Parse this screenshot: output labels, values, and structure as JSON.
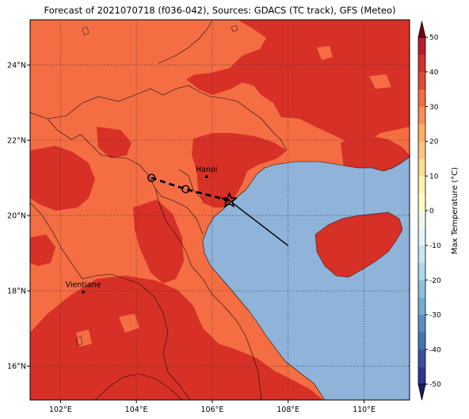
{
  "title": "Forecast of 2021070718 (f036-042), Sources: GDACS (TC track), GFS (Meteo)",
  "map": {
    "lon_range": [
      101.2,
      111.2
    ],
    "lat_range": [
      15.1,
      25.2
    ],
    "lon_ticks": [
      102,
      104,
      106,
      108,
      110
    ],
    "lat_ticks": [
      16,
      18,
      20,
      22,
      24
    ],
    "lon_tick_labels": [
      "102°E",
      "104°E",
      "106°E",
      "108°E",
      "110°E"
    ],
    "lat_tick_labels": [
      "16°N",
      "18°N",
      "20°N",
      "22°N",
      "24°N"
    ],
    "gridlines": true,
    "ocean_color": "#8fb3d9",
    "land_colors": {
      "20_30": "#f46d43",
      "30_40": "#d73027"
    }
  },
  "cities": [
    {
      "name": "Hanoi",
      "lon": 105.85,
      "lat": 21.03
    },
    {
      "name": "Vientiane",
      "lon": 102.6,
      "lat": 17.97
    }
  ],
  "track": {
    "current": {
      "lon": 106.45,
      "lat": 20.4
    },
    "forecast_points": [
      {
        "lon": 105.3,
        "lat": 20.7
      },
      {
        "lon": 104.4,
        "lat": 21.0
      }
    ],
    "past_track_end": {
      "lon": 108.0,
      "lat": 19.2
    }
  },
  "colorbar": {
    "label": "Max Temperature (°C)",
    "ticks": [
      "-50",
      "-40",
      "-30",
      "-20",
      "-10",
      "0",
      "10",
      "20",
      "30",
      "40",
      "50"
    ],
    "boundaries": [
      -50,
      -45,
      -40,
      -35,
      -30,
      -25,
      -20,
      -15,
      -10,
      -5,
      0,
      5,
      10,
      15,
      20,
      25,
      30,
      35,
      40,
      45,
      50
    ],
    "colors": [
      "#313695",
      "#3d4fa1",
      "#4575b4",
      "#5b8fc3",
      "#74add1",
      "#91bfdb",
      "#abd9e9",
      "#c6e6f0",
      "#e0f3f8",
      "#f0f9e8",
      "#ffffbf",
      "#fff0b0",
      "#fee090",
      "#fdc47d",
      "#fdae61",
      "#f88d52",
      "#f46d43",
      "#e34a33",
      "#d73027",
      "#bb1c2b",
      "#a50026"
    ],
    "extend_low_color": "#171c6b",
    "extend_high_color": "#7b0019"
  }
}
